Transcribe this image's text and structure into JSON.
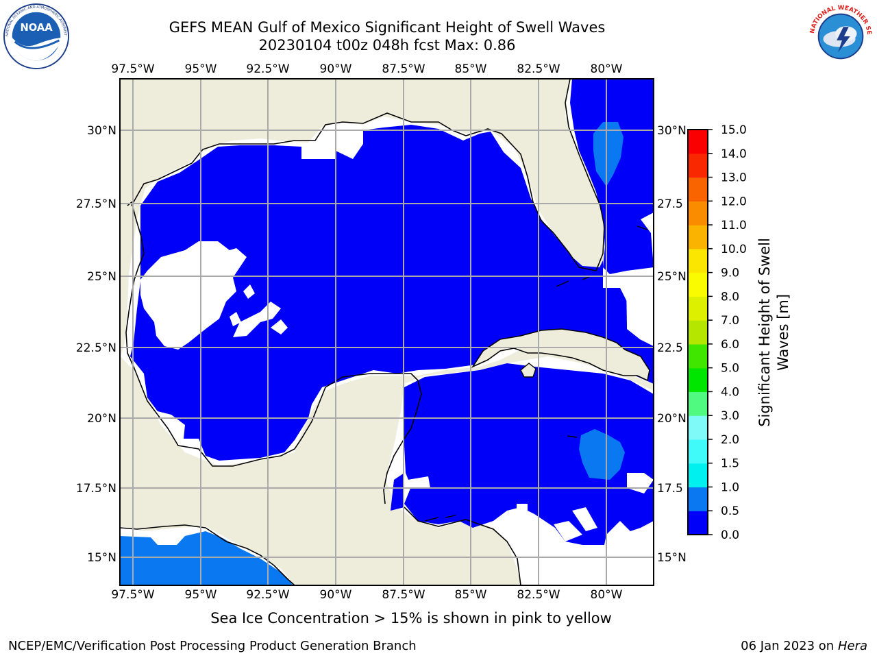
{
  "header": {
    "title_line1": "GEFS MEAN Gulf of Mexico Significant Height of Swell Waves",
    "title_line2": "20230104 t00z 048h fcst   Max: 0.86"
  },
  "logos": {
    "noaa": {
      "text": "NOAA",
      "ring_text": "NATIONAL OCEANIC AND ATMOSPHERIC ADMINISTRATION · U.S. DEPARTMENT OF COMMERCE"
    },
    "nws": {
      "ring_text": "NATIONAL WEATHER SERVICE"
    }
  },
  "map": {
    "lon_ticks": [
      "97.5°W",
      "95°W",
      "92.5°W",
      "90°W",
      "87.5°W",
      "85°W",
      "82.5°W",
      "80°W"
    ],
    "lat_ticks_left": [
      "30°N",
      "27.5°N",
      "25°N",
      "22.5°N",
      "20°N",
      "17.5°N",
      "15°N"
    ],
    "lat_ticks_right": [
      "30°N",
      "27.5",
      "25°N",
      "22.5",
      "20°N",
      "17.5",
      "15°N"
    ],
    "colors": {
      "land": "#eeeddc",
      "swell_low": "#0000fa",
      "swell_mid": "#0a78f0",
      "grid": "#aaaaaa"
    }
  },
  "colorbar": {
    "label_line1": "Significant Height of Swell",
    "label_line2": "Waves [m]",
    "ticks": [
      "15.0",
      "14.0",
      "13.0",
      "12.0",
      "11.0",
      "10.0",
      "9.0",
      "8.0",
      "7.0",
      "6.0",
      "5.0",
      "4.0",
      "3.0",
      "2.0",
      "1.5",
      "1.0",
      "0.5",
      "0.0"
    ],
    "colors": [
      "#0000fa",
      "#0a78f0",
      "#00dcf0",
      "#00f0f0",
      "#40fafa",
      "#80faf8",
      "#a0faf8",
      "#50fa80",
      "#00e600",
      "#40e600",
      "#78e600",
      "#b4e600",
      "#dcf000",
      "#fafa00",
      "#fae600",
      "#fac800",
      "#fab400",
      "#fa8c00",
      "#fa6400",
      "#fa3c00",
      "#fa2800",
      "#fa0000"
    ]
  },
  "footer": {
    "sea_ice_note": "Sea Ice Concentration > 15% is shown in pink to yellow",
    "credit": "NCEP/EMC/Verification Post Processing Product Generation Branch",
    "date_prefix": "06 Jan 2023 on ",
    "date_host": "Hera"
  }
}
